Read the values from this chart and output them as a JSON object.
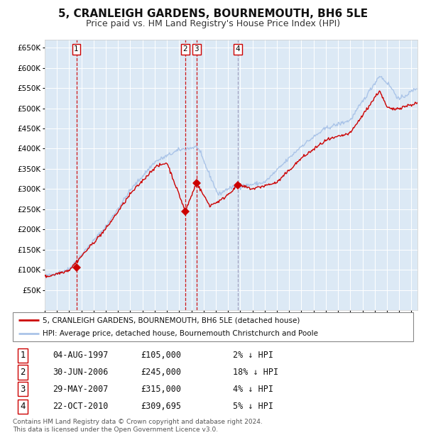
{
  "title": "5, CRANLEIGH GARDENS, BOURNEMOUTH, BH6 5LE",
  "subtitle": "Price paid vs. HM Land Registry's House Price Index (HPI)",
  "title_fontsize": 11,
  "subtitle_fontsize": 9,
  "background_color": "#dce9f5",
  "plot_bg_color": "#dce9f5",
  "grid_color": "#ffffff",
  "ylim": [
    0,
    670000
  ],
  "yticks": [
    50000,
    100000,
    150000,
    200000,
    250000,
    300000,
    350000,
    400000,
    450000,
    500000,
    550000,
    600000,
    650000
  ],
  "sale_dates_years": [
    1997.59,
    2006.5,
    2007.41,
    2010.81
  ],
  "sale_prices": [
    105000,
    245000,
    315000,
    309695
  ],
  "sale_labels": [
    "1",
    "2",
    "3",
    "4"
  ],
  "legend_line1": "5, CRANLEIGH GARDENS, BOURNEMOUTH, BH6 5LE (detached house)",
  "legend_line2": "HPI: Average price, detached house, Bournemouth Christchurch and Poole",
  "table_entries": [
    [
      "1",
      "04-AUG-1997",
      "£105,000",
      "2% ↓ HPI"
    ],
    [
      "2",
      "30-JUN-2006",
      "£245,000",
      "18% ↓ HPI"
    ],
    [
      "3",
      "29-MAY-2007",
      "£315,000",
      "4% ↓ HPI"
    ],
    [
      "4",
      "22-OCT-2010",
      "£309,695",
      "5% ↓ HPI"
    ]
  ],
  "footer": "Contains HM Land Registry data © Crown copyright and database right 2024.\nThis data is licensed under the Open Government Licence v3.0.",
  "hpi_color": "#aac4e8",
  "price_color": "#cc0000",
  "vline_colors": [
    "#cc0000",
    "#cc0000",
    "#cc0000",
    "#9999bb"
  ],
  "x_start_year": 1995.0,
  "x_end_year": 2025.5
}
